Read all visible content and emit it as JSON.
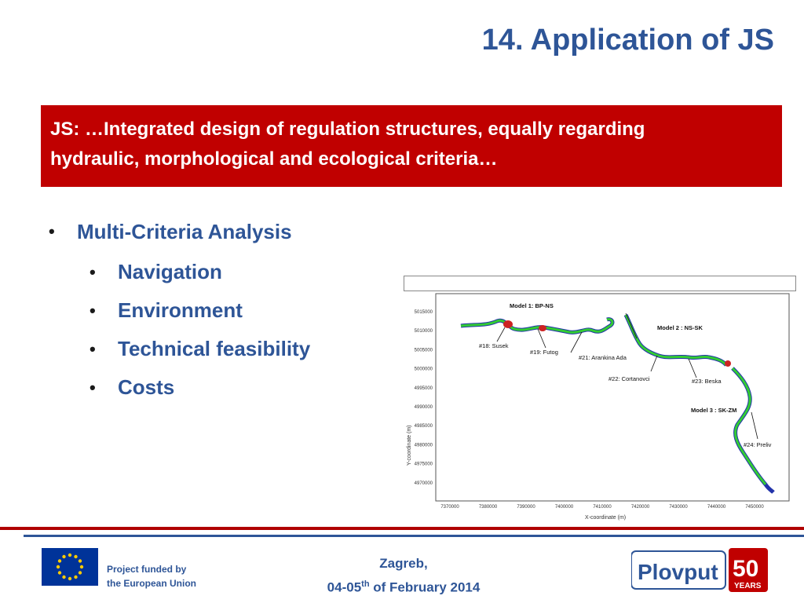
{
  "slide": {
    "title": "14. Application of JS",
    "banner_line1": "JS: …Integrated design of regulation structures, equally regarding",
    "banner_line2": "hydraulic, morphological and ecological criteria…",
    "bullets": {
      "main": "Multi-Criteria Analysis",
      "sub": [
        "Navigation",
        "Environment",
        "Technical feasibility",
        "Costs"
      ]
    },
    "bullet_symbol": "•"
  },
  "figure": {
    "x_axis_label": "X-coordinate (m)",
    "y_axis_label": "Y-coordinate (m)",
    "x_ticks": [
      "7370000",
      "7380000",
      "7390000",
      "7400000",
      "7410000",
      "7420000",
      "7430000",
      "7440000",
      "7450000"
    ],
    "y_ticks": [
      "5015000",
      "5010000",
      "5005000",
      "5000000",
      "4995000",
      "4990000",
      "4985000",
      "4980000",
      "4975000",
      "4970000"
    ],
    "model_labels": [
      "Model 1: BP-NS",
      "Model 2 : NS-SK",
      "Model 3 : SK-ZM"
    ],
    "site_labels": [
      "#18: Susek",
      "#19: Futog",
      "#21: Arankina Ada",
      "#22: Cortanovci",
      "#23: Beska",
      "#24: Preliv"
    ]
  },
  "footer": {
    "funded_line1": "Project funded by",
    "funded_line2": "the European Union",
    "city": "Zagreb,",
    "date_prefix": "04-05",
    "date_sup": "th",
    "date_suffix": " of February 2014",
    "logo_text": "Plovput",
    "logo_number": "50",
    "logo_years": "YEARS"
  },
  "colors": {
    "title_blue": "#2e5597",
    "banner_red": "#c00000",
    "river_green": "#33cc33",
    "river_blue": "#2233aa",
    "river_red": "#cc2222"
  }
}
